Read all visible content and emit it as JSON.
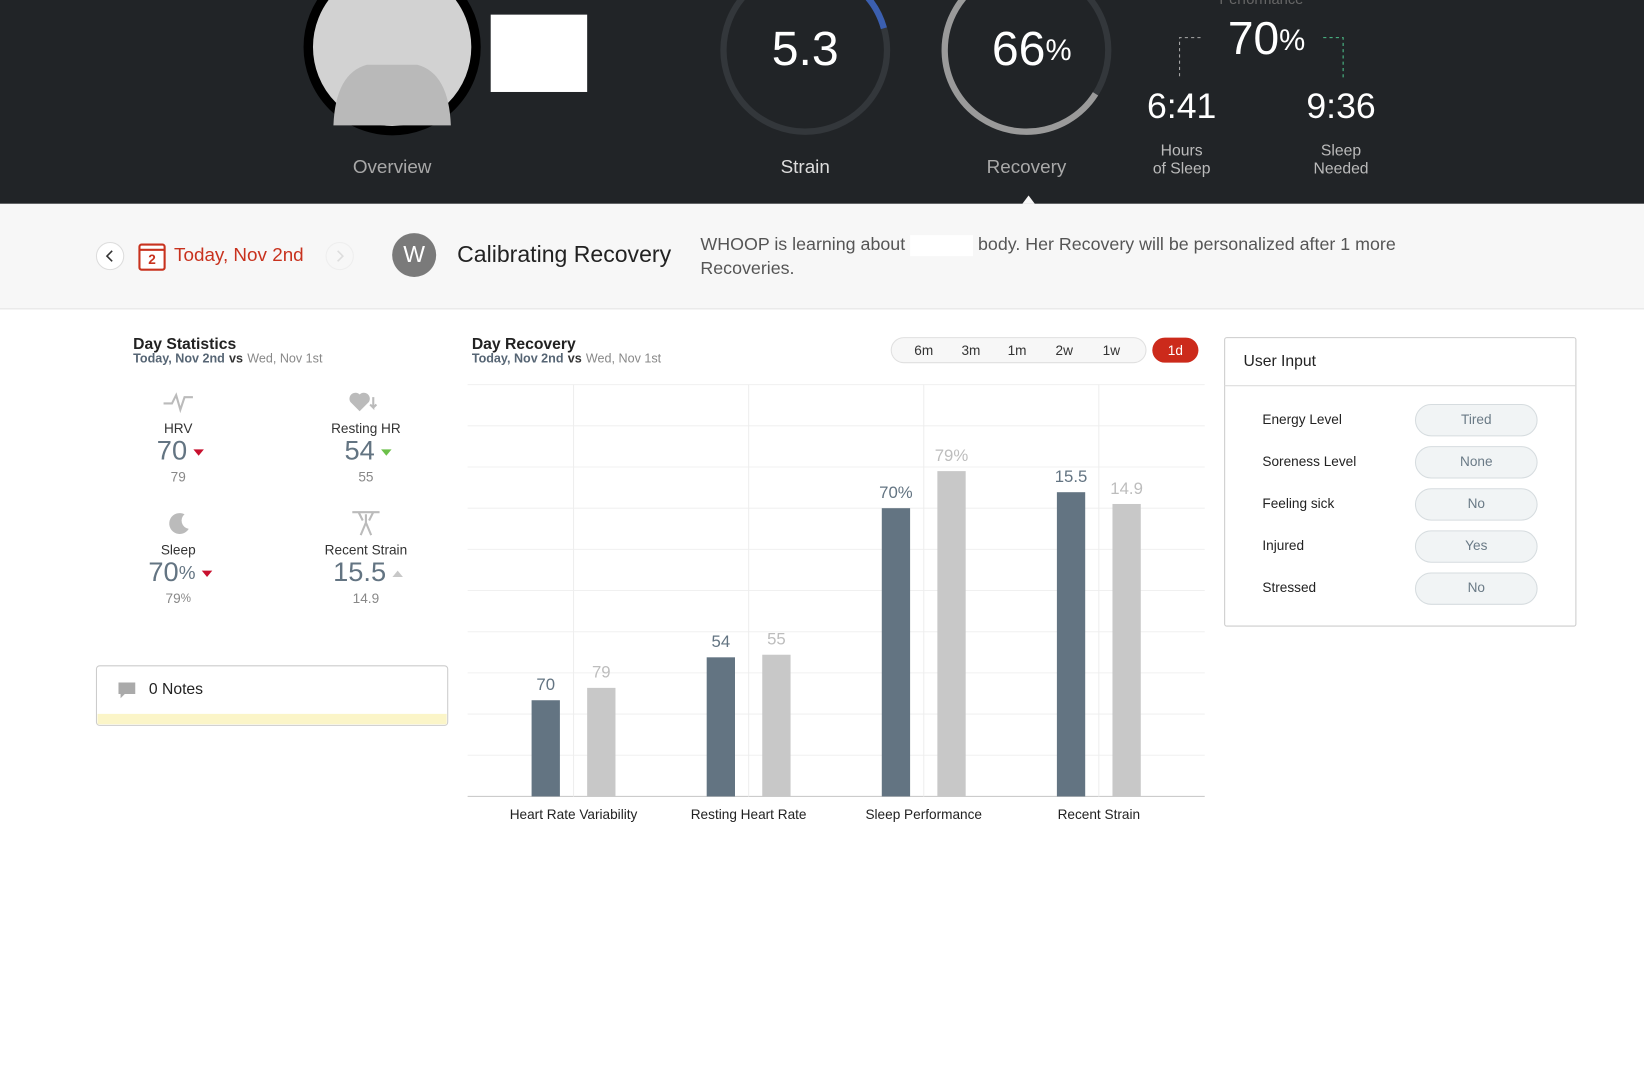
{
  "header": {
    "overview_label": "Overview",
    "strain": {
      "value": 5.3,
      "label": "Strain"
    },
    "recovery": {
      "value": 66,
      "unit": "%",
      "label": "Recovery"
    },
    "performance": {
      "label": "Performance",
      "value": 70,
      "unit": "%"
    },
    "hours_of_sleep": {
      "value": "6:41",
      "label_lines": [
        "Hours",
        "of Sleep"
      ]
    },
    "sleep_needed": {
      "value": "9:36",
      "label_lines": [
        "Sleep",
        "Needed"
      ]
    }
  },
  "date_bar": {
    "calendar_day": 2,
    "date": "Today, Nov 2nd",
    "logo": "W",
    "title": "Calibrating Recovery",
    "message_start": "WHOOP is learning about",
    "message_end": "body. Her Recovery will be personalized after 1 more Recoveries."
  },
  "day_statistics": {
    "title": "Day Statistics",
    "stats": [
      {
        "label": "HRV",
        "value": 70,
        "previous": 79,
        "trend": "down",
        "trend_color": "#c8102e"
      },
      {
        "label": "Resting HR",
        "value": 54,
        "previous": 55,
        "trend": "down",
        "trend_color": "#6cc04a"
      },
      {
        "label": "Sleep",
        "value": 70,
        "previous": 79,
        "unit": "%",
        "trend": "down",
        "trend_color": "#c8102e"
      },
      {
        "label": "Recent Strain",
        "value": 15.5,
        "previous": 14.9,
        "trend": "up",
        "trend_color": "#c8c8c8"
      }
    ]
  },
  "notes": {
    "label": "0 Notes"
  },
  "chart_data": {
    "type": "bar",
    "title": "Day Recovery",
    "vs": "vs",
    "ranges": [
      "6m",
      "3m",
      "1m",
      "2w",
      "1w",
      "1d"
    ],
    "selected_range": 5,
    "categories": [
      "Heart Rate Variability",
      "Resting Heart Rate",
      "Sleep Performance",
      "Recent Strain"
    ],
    "series": [
      {
        "name": "Today, Nov 2nd",
        "color": "#637482",
        "label_color": "#637482",
        "values": [
          70,
          54,
          70,
          15.5
        ],
        "value_labels": [
          "70",
          "54",
          "70%",
          "15.5"
        ]
      },
      {
        "name": "Wed, Nov 1st",
        "color": "#c8c8c8",
        "label_color": "#bdbdbd",
        "values": [
          79,
          55,
          79,
          14.9
        ],
        "value_labels": [
          "79",
          "55",
          "79%",
          "14.9"
        ]
      }
    ]
  },
  "user_input": {
    "title": "User Input",
    "items": [
      {
        "label": "Energy Level",
        "value": "Tired"
      },
      {
        "label": "Soreness Level",
        "value": "None"
      },
      {
        "label": "Feeling sick",
        "value": "No"
      },
      {
        "label": "Injured",
        "value": "Yes"
      },
      {
        "label": "Stressed",
        "value": "No"
      }
    ]
  }
}
